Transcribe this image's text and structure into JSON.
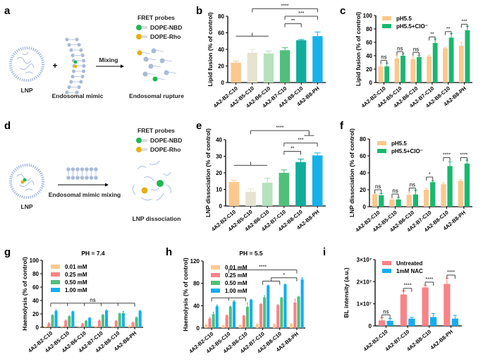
{
  "panel_labels": [
    "a",
    "b",
    "c",
    "d",
    "e",
    "f",
    "g",
    "h",
    "i"
  ],
  "schematic_a": {
    "lnp": "LNP",
    "plus": "+",
    "mimic": "Endosomal mimic",
    "arrow": "Mixing",
    "fret": "FRET probes",
    "probe1": "DOPE-NBD",
    "probe2": "DOPE-Rho",
    "result": "Endosomal rupture"
  },
  "schematic_d": {
    "lnp": "LNP",
    "arrow": "Endosomal mimic mixing",
    "fret": "FRET probes",
    "probe1": "DOPE-NBD",
    "probe2": "DOPE-Rho",
    "result": "LNP dissociation"
  },
  "colors": {
    "probe_green": "#1db954",
    "probe_yellow": "#e3b014",
    "lipid": "#a9bbd9"
  },
  "chart_data": [
    {
      "id": "b",
      "type": "bar",
      "ylabel": "Lipid fusion (% of control)",
      "ylim": [
        0,
        80
      ],
      "yticks": [
        "0",
        "20",
        "40",
        "60",
        "80"
      ],
      "categories": [
        "4A2-B2-C10",
        "4A2-B5-C10",
        "4A2-B6-C10",
        "4A2-B7-C10",
        "4A2-B8-C10",
        "4A2-B8-PH"
      ],
      "bar_colors": [
        "#fcc88e",
        "#e6e4d0",
        "#b5e2bd",
        "#50bf7c",
        "#10ad9d",
        "#17b1ea"
      ],
      "series": [
        {
          "values": [
            24,
            36,
            35,
            39,
            51,
            56
          ],
          "errors": [
            2,
            4,
            3,
            3,
            1,
            5
          ]
        }
      ],
      "significance": [
        {
          "x1": 0,
          "x2": 2,
          "y": 56,
          "flat": true,
          "text": ""
        },
        {
          "x1": 1,
          "x2": 5,
          "y": 89,
          "text": "****"
        },
        {
          "x1": 3,
          "x2": 5,
          "y": 80,
          "text": "***"
        },
        {
          "x1": 3,
          "x2": 4,
          "y": 71,
          "text": "**"
        }
      ]
    },
    {
      "id": "c",
      "type": "bar",
      "ylabel": "Lipid fusion (% of control)",
      "ylim": [
        0,
        100
      ],
      "yticks": [
        "0",
        "20",
        "40",
        "60",
        "80",
        "100"
      ],
      "categories": [
        "4A2-B2-C10",
        "4A2-B5-C10",
        "4A2-B6-C10",
        "4A2-B7-C10",
        "4A2-B8-C10",
        "4A2-B8-PH"
      ],
      "legend": "top-left",
      "series": [
        {
          "name": "pH5.5",
          "color": "#fcc88e",
          "values": [
            24,
            36,
            35,
            39,
            51,
            55
          ],
          "errors": [
            2,
            4,
            3,
            2,
            1,
            5
          ]
        },
        {
          "name": "pH5.5+ClO⁻",
          "color": "#19b86e",
          "values": [
            24,
            40,
            38,
            59,
            67,
            78
          ],
          "errors": [
            5,
            3,
            2,
            6,
            6,
            6
          ]
        }
      ],
      "significance": [
        {
          "cat": 0,
          "y": 33,
          "text": "ns"
        },
        {
          "cat": 1,
          "y": 46,
          "text": "ns"
        },
        {
          "cat": 2,
          "y": 45,
          "text": "ns"
        },
        {
          "cat": 3,
          "y": 68,
          "text": "**"
        },
        {
          "cat": 4,
          "y": 76,
          "text": "**"
        },
        {
          "cat": 5,
          "y": 87,
          "text": "***"
        }
      ]
    },
    {
      "id": "e",
      "type": "bar",
      "ylabel": "LNP dissociation (% of control)",
      "ylim": [
        0,
        40
      ],
      "yticks": [
        "0",
        "10",
        "20",
        "30",
        "40"
      ],
      "categories": [
        "4A2-B2-C10",
        "4A2-B5-C10",
        "4A2-B6-C10",
        "4A2-B7-C10",
        "4A2-B8-C10",
        "4A2-B8-PH"
      ],
      "bar_colors": [
        "#fcc88e",
        "#e6e4d0",
        "#b5e2bd",
        "#50bf7c",
        "#10ad9d",
        "#17b1ea"
      ],
      "series": [
        {
          "values": [
            14.5,
            8.5,
            14,
            20,
            26.5,
            30.5
          ],
          "errors": [
            1,
            1.8,
            2.8,
            1.8,
            1.8,
            1.5
          ]
        }
      ],
      "significance": [
        {
          "x1": 0,
          "x2": 2,
          "y": 24.5,
          "flat": true,
          "text": ""
        },
        {
          "x1": 1,
          "x2": 4.5,
          "y": 45.5,
          "text": "****"
        },
        {
          "x1": 4.2,
          "x2": 4.8,
          "y": 42.5,
          "flat": true,
          "text": ""
        },
        {
          "x1": 3,
          "x2": 5,
          "y": 38,
          "text": "***"
        },
        {
          "x1": 3,
          "x2": 4,
          "y": 33,
          "text": "**"
        }
      ]
    },
    {
      "id": "f",
      "type": "bar",
      "ylabel": "LNP dissociation (% of control)",
      "ylim": [
        0,
        80
      ],
      "yticks": [
        "0",
        "20",
        "40",
        "60",
        "80"
      ],
      "categories": [
        "4A2-B2-C10",
        "4A2-B5-C10",
        "4A2-B6-C10",
        "4A2-B7-C10",
        "4A2-B8-C10",
        "4A2-B8-PH"
      ],
      "legend": "top-left",
      "series": [
        {
          "name": "pH5.5",
          "color": "#fcc88e",
          "values": [
            14.5,
            8.5,
            14,
            20,
            26.5,
            30.5
          ],
          "errors": [
            1,
            1.8,
            2.8,
            1.8,
            1.8,
            1.5
          ]
        },
        {
          "name": "pH5.5+ClO⁻",
          "color": "#19b86e",
          "values": [
            13.5,
            8.5,
            14.5,
            29,
            48,
            51
          ],
          "errors": [
            2,
            2.5,
            5,
            1.5,
            5,
            4
          ]
        }
      ],
      "significance": [
        {
          "cat": 0,
          "y": 20,
          "text": "ns"
        },
        {
          "cat": 1,
          "y": 15,
          "text": "ns"
        },
        {
          "cat": 2,
          "y": 22,
          "text": "ns"
        },
        {
          "cat": 3,
          "y": 35,
          "text": "*"
        },
        {
          "cat": 4,
          "y": 58,
          "text": "****"
        },
        {
          "cat": 5,
          "y": 58,
          "text": "****"
        }
      ]
    },
    {
      "id": "g",
      "type": "bar",
      "title": "PH = 7.4",
      "ylabel": "Haemolysis (% of control)",
      "ylim": [
        0,
        100
      ],
      "yticks": [
        "0",
        "20",
        "40",
        "60",
        "80",
        "100"
      ],
      "categories": [
        "4A2-B2-C10",
        "4A2-B5-C10",
        "4A2-B6-C10",
        "4A2-B7-C10",
        "4A2-B8-C10",
        "4A2-B8-PH"
      ],
      "legend": "top-left",
      "series": [
        {
          "name": "0.01 mM",
          "color": "#fcc88e",
          "values": [
            1,
            1,
            1,
            1.5,
            1,
            2
          ],
          "errors": [
            0.3,
            0.3,
            0.3,
            0.3,
            0.3,
            0.5
          ]
        },
        {
          "name": "0.25 mM",
          "color": "#f98386",
          "values": [
            6,
            10,
            5,
            10,
            9.5,
            7
          ],
          "errors": [
            0.8,
            1,
            0.8,
            0.8,
            0.8,
            0.8
          ]
        },
        {
          "name": "0.50 mM",
          "color": "#52bf7b",
          "values": [
            18,
            16.5,
            9.5,
            18.5,
            20.5,
            14.5
          ],
          "errors": [
            0.8,
            0.6,
            0.6,
            0.6,
            0.6,
            0.8
          ]
        },
        {
          "name": "1.00 mM",
          "color": "#12aef0",
          "values": [
            24.5,
            23.5,
            14,
            25,
            21,
            24.5
          ],
          "errors": [
            1.5,
            0.6,
            0.6,
            1,
            2.5,
            0.8
          ]
        }
      ],
      "significance": [
        {
          "x1": 0,
          "x2": 5,
          "y": 36,
          "ticks_all": true,
          "text": "ns"
        }
      ]
    },
    {
      "id": "h",
      "type": "bar",
      "title": "PH = 5.5",
      "ylabel": "Haemolysis (% of control)",
      "ylim": [
        0,
        120
      ],
      "yticks": [
        "0",
        "40",
        "80",
        "120"
      ],
      "categories": [
        "4A2-B2-C10",
        "4A2-B5-C10",
        "4A2-B6-C10",
        "4A2-B7-C10",
        "4A2-B8-C10",
        "4A2-B8-PH"
      ],
      "legend": "top-left",
      "series": [
        {
          "name": "0.01 mM",
          "color": "#fcc88e",
          "values": [
            6,
            5,
            5.5,
            7,
            6.5,
            7.5
          ],
          "errors": [
            0.5,
            0.5,
            0.5,
            0.5,
            0.5,
            0.5
          ]
        },
        {
          "name": "0.25 mM",
          "color": "#f98386",
          "values": [
            17,
            22.5,
            22,
            43,
            41,
            45.5
          ],
          "errors": [
            2,
            0.8,
            0.6,
            0.5,
            0.8,
            6
          ]
        },
        {
          "name": "0.50 mM",
          "color": "#52bf7b",
          "values": [
            25,
            38,
            38,
            55,
            54,
            56
          ],
          "errors": [
            3,
            1.5,
            7,
            3,
            0.8,
            0.8
          ]
        },
        {
          "name": "1.00 mM",
          "color": "#12aef0",
          "values": [
            39,
            47.5,
            50.5,
            76,
            78,
            87
          ],
          "errors": [
            2,
            1.5,
            0.8,
            0.8,
            0.8,
            3
          ]
        }
      ],
      "significance": [
        {
          "x1": 0,
          "x2": 2,
          "y": 54,
          "ticks_all": true,
          "text": ""
        },
        {
          "x1": 1,
          "x2": 5,
          "y": 104,
          "text": "****"
        },
        {
          "x1": 3,
          "x2": 4,
          "y": 84,
          "text": ""
        },
        {
          "x1": 3.5,
          "x2": 5,
          "y": 90,
          "text": "*"
        }
      ]
    },
    {
      "id": "i",
      "type": "bar",
      "ylabel": "BL intensity (a.u.)",
      "ylim": [
        0,
        3
      ],
      "yticks": [
        "0",
        "1×10⁷",
        "2×10⁷",
        "3×10⁷"
      ],
      "yunit": "1e7",
      "categories": [
        "4A2-B2-C10",
        "4A2-B7-C10",
        "4A2-B8-C10",
        "4A2-B8-PH"
      ],
      "legend": "top-right",
      "series": [
        {
          "name": "Untreated",
          "color": "#f98386",
          "values": [
            0.25,
            1.42,
            1.74,
            1.9
          ],
          "errors": [
            0.12,
            0.16,
            0.1,
            0.26
          ]
        },
        {
          "name": "1mM NAC",
          "color": "#12aef0",
          "values": [
            0.23,
            0.33,
            0.4,
            0.33
          ],
          "errors": [
            0.1,
            0.06,
            0.16,
            0.15
          ]
        }
      ],
      "significance": [
        {
          "cat": 0,
          "y": 0.5,
          "text": "ns"
        },
        {
          "cat": 1,
          "y": 1.7,
          "text": "****"
        },
        {
          "cat": 2,
          "y": 1.98,
          "text": "****"
        },
        {
          "cat": 3,
          "y": 2.3,
          "text": "****"
        }
      ]
    }
  ]
}
